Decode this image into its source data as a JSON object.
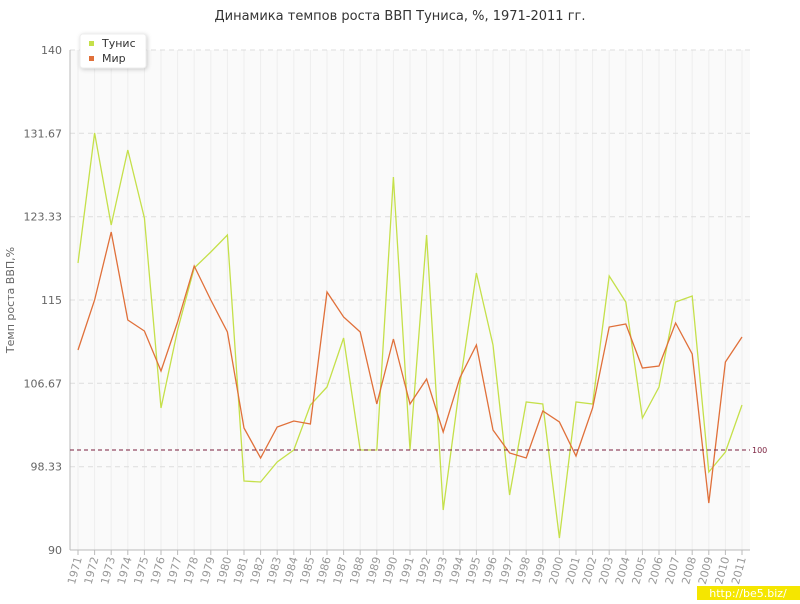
{
  "chart_data": {
    "type": "line",
    "title": "Динамика темпов роста ВВП Туниса, %, 1971-2011 гг.",
    "y_label": "Темп роста ВВП,%",
    "categories": [
      "1971",
      "1972",
      "1973",
      "1974",
      "1975",
      "1976",
      "1977",
      "1978",
      "1979",
      "1980",
      "1981",
      "1982",
      "1983",
      "1984",
      "1985",
      "1986",
      "1987",
      "1988",
      "1989",
      "1990",
      "1991",
      "1992",
      "1993",
      "1994",
      "1995",
      "1996",
      "1997",
      "1998",
      "1999",
      "2000",
      "2001",
      "2002",
      "2003",
      "2004",
      "2005",
      "2006",
      "2007",
      "2008",
      "2009",
      "2010",
      "2011"
    ],
    "series": [
      {
        "name": "Тунис",
        "color": "#c5e04a",
        "values": [
          118.7,
          131.7,
          122.5,
          130,
          123.2,
          104.2,
          112,
          118.2,
          119.8,
          121.5,
          96.9,
          96.8,
          98.8,
          100,
          104.5,
          106.3,
          111.2,
          100,
          100,
          127.3,
          100,
          121.5,
          94,
          106.5,
          117.7,
          110.5,
          95.5,
          104.8,
          104.6,
          91.2,
          104.8,
          104.6,
          117.4,
          114.8,
          103.2,
          106.3,
          114.8,
          115.4,
          97.8,
          99.8,
          104.5
        ]
      },
      {
        "name": "Мир",
        "color": "#e0703a",
        "values": [
          110,
          115,
          121.8,
          113,
          111.9,
          107.9,
          112.8,
          118.4,
          115,
          111.8,
          102.2,
          99.2,
          102.3,
          102.9,
          102.6,
          115.8,
          113.3,
          111.8,
          104.6,
          111.1,
          104.6,
          107.1,
          101.8,
          107.2,
          110.5,
          102,
          99.7,
          99.2,
          103.9,
          102.8,
          99.4,
          104.2,
          112.3,
          112.6,
          108.2,
          108.4,
          112.7,
          109.6,
          94.7,
          108.8,
          111.3
        ]
      }
    ],
    "ylim": [
      90,
      140
    ],
    "yticks": [
      90,
      98.33,
      106.67,
      115,
      123.33,
      131.67,
      140
    ],
    "reference_line": 100,
    "grid": true,
    "legend": "top-left",
    "watermark": "http://be5.biz/"
  }
}
